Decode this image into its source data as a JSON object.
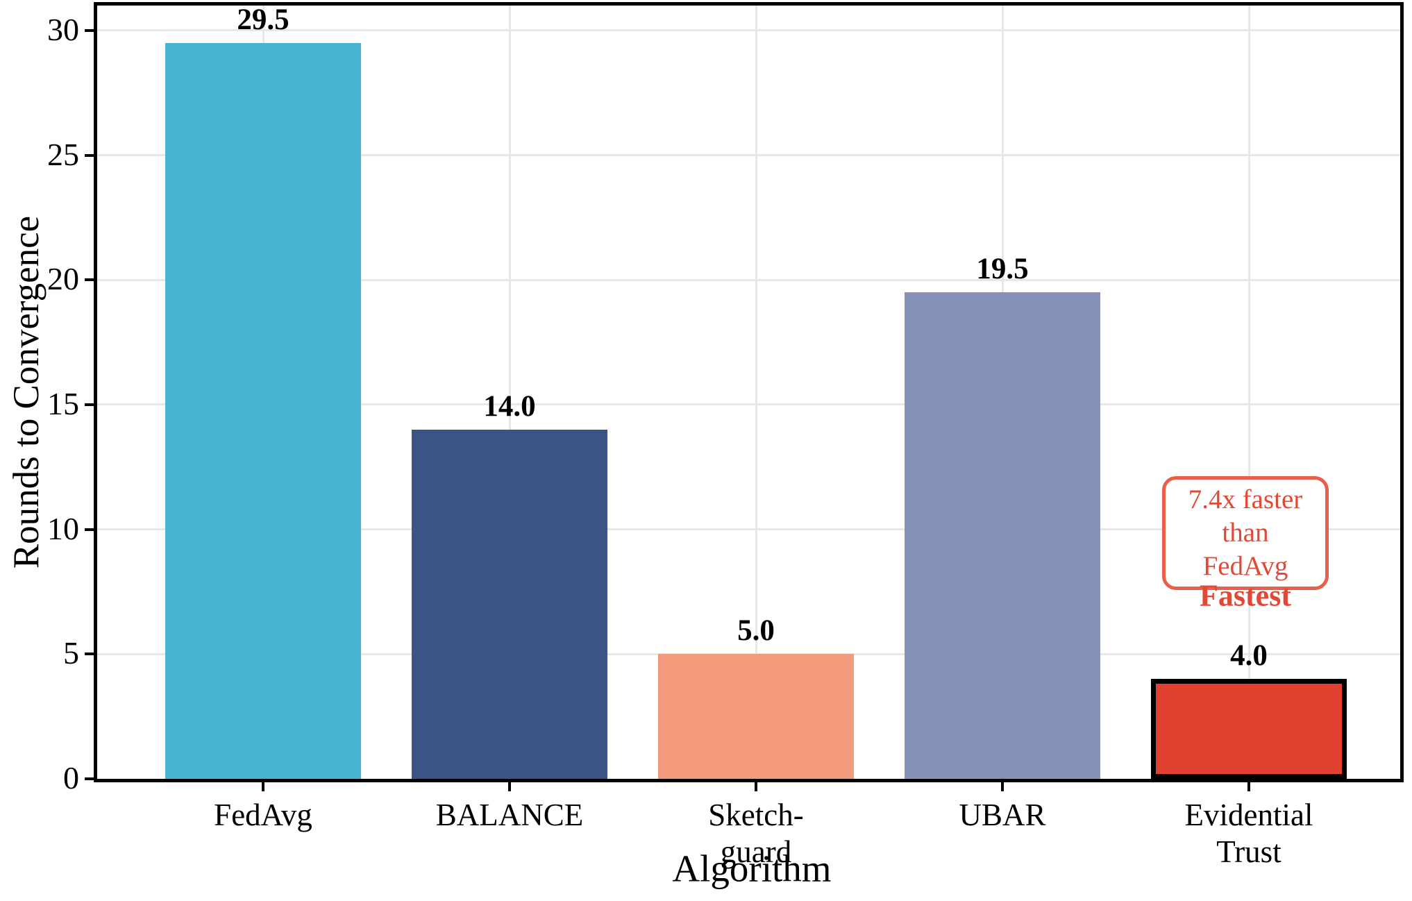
{
  "figure": {
    "background": "#ffffff"
  },
  "chart_data": {
    "type": "bar",
    "title": "",
    "xlabel": "Algorithm",
    "ylabel": "Rounds to Convergence",
    "categories": [
      "FedAvg",
      "BALANCE",
      "Sketch-\nguard",
      "UBAR",
      "Evidential\nTrust"
    ],
    "values": [
      29.5,
      14.0,
      5.0,
      19.5,
      4.0
    ],
    "value_labels": [
      "29.5",
      "14.0",
      "5.0",
      "19.5",
      "4.0"
    ],
    "bar_colors": [
      "#47b4d2",
      "#3b5486",
      "#f29a7b",
      "#8692b8",
      "#e14131"
    ],
    "highlight": {
      "index": 4,
      "edge_color": "#000000",
      "note": "thick black outline on fastest bar"
    },
    "ylim": [
      0,
      31
    ],
    "yticks": [
      0,
      5,
      10,
      15,
      20,
      25,
      30
    ],
    "grid": true,
    "grid_color": "#e7e7e7",
    "legend": null,
    "annotation": {
      "box_text": "7.4x faster\nthan FedAvg",
      "below_text": "Fastest",
      "text_color": "#e04a35",
      "border_color": "#e8604c"
    }
  }
}
